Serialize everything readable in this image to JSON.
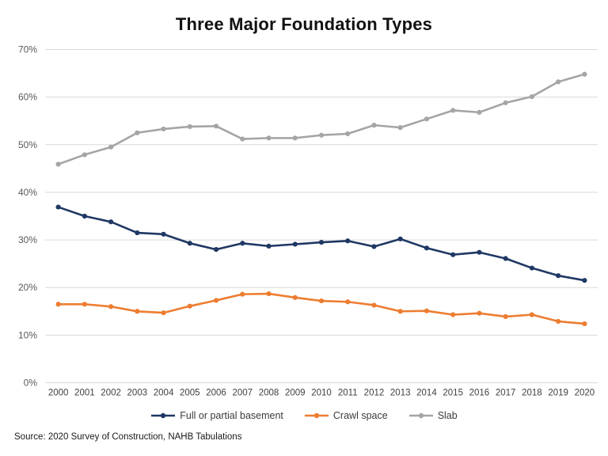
{
  "title": "Three Major Foundation Types",
  "source": "Source: 2020 Survey of Construction, NAHB Tabulations",
  "colors": {
    "basement": "#1F3864",
    "crawl_space": "#ED7D31",
    "slab": "#A5A5A5",
    "gridline": "#D9D9D9",
    "y_tick_text": "#595959",
    "x_tick_text": "#404040"
  },
  "chart_data": {
    "type": "line",
    "title": "Three Major Foundation Types",
    "x": [
      2000,
      2001,
      2002,
      2003,
      2004,
      2005,
      2006,
      2007,
      2008,
      2009,
      2010,
      2011,
      2012,
      2013,
      2014,
      2015,
      2016,
      2017,
      2018,
      2019,
      2020
    ],
    "series": [
      {
        "name": "Full or partial basement",
        "color": "#1F3864",
        "values": [
          36.9,
          35.0,
          33.8,
          31.5,
          31.2,
          29.3,
          28.0,
          29.3,
          28.7,
          29.1,
          29.5,
          29.8,
          28.6,
          30.2,
          28.3,
          26.9,
          27.4,
          26.1,
          24.1,
          22.5,
          21.5
        ]
      },
      {
        "name": "Crawl space",
        "color": "#ED7D31",
        "values": [
          16.5,
          16.5,
          16.0,
          15.0,
          14.7,
          16.1,
          17.3,
          18.6,
          18.7,
          17.9,
          17.2,
          17.0,
          16.3,
          15.0,
          15.1,
          14.3,
          14.6,
          13.9,
          14.3,
          12.9,
          12.4
        ]
      },
      {
        "name": "Slab",
        "color": "#A5A5A5",
        "values": [
          45.9,
          47.9,
          49.5,
          52.5,
          53.3,
          53.8,
          53.9,
          51.2,
          51.4,
          51.4,
          52.0,
          52.3,
          54.1,
          53.6,
          55.4,
          57.2,
          56.8,
          58.8,
          60.1,
          63.2,
          64.8
        ]
      }
    ],
    "ylim": [
      0,
      70
    ],
    "ytick_step": 10,
    "ytick_suffix": "%",
    "grid": true,
    "legend_position": "bottom"
  }
}
